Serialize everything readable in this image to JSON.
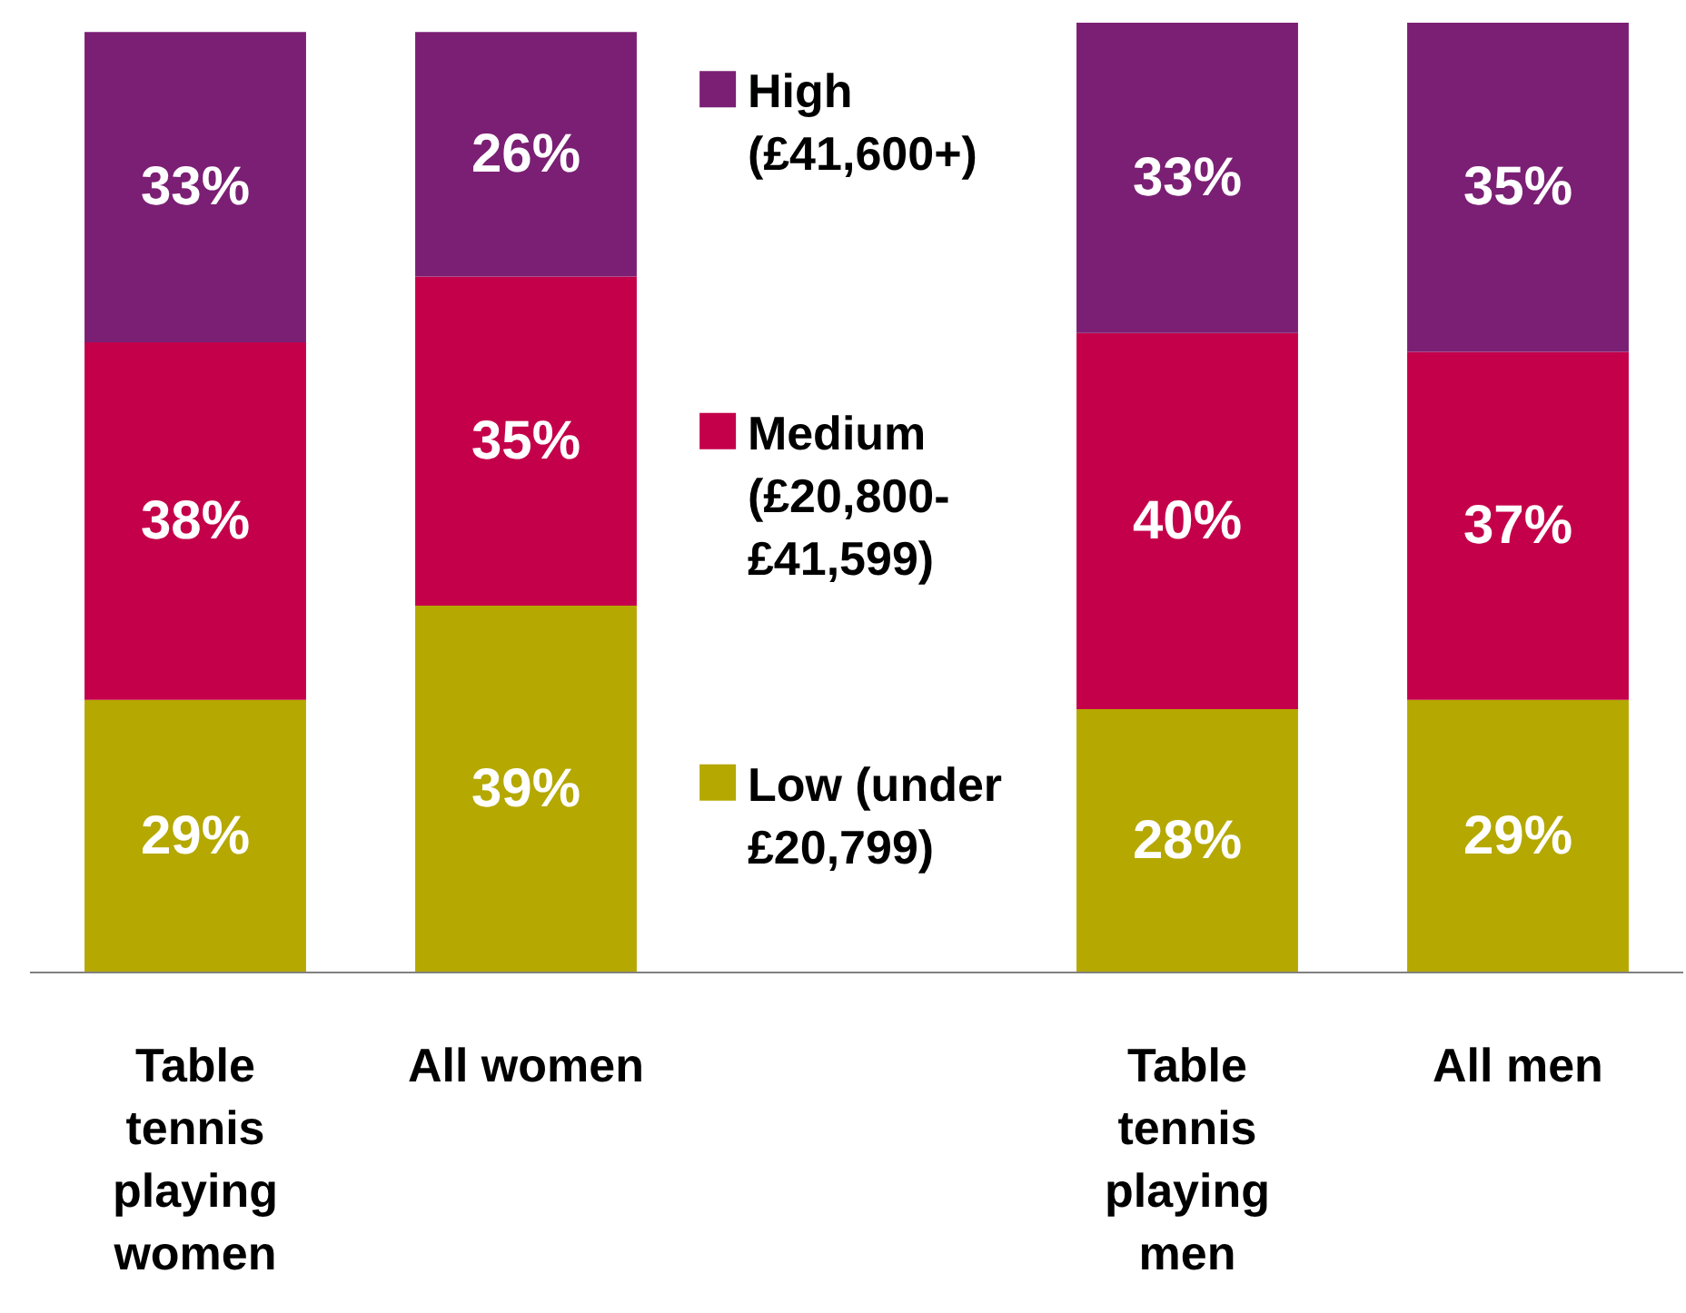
{
  "chart_data": {
    "type": "bar",
    "stacked": true,
    "legend": "top",
    "grid": false,
    "categories": [
      "Table tennis playing women",
      "All women",
      null,
      "Table tennis playing men",
      "All men"
    ],
    "series": [
      {
        "name": "Low (under £20,799)",
        "color": "#b5a800",
        "values": [
          29,
          39,
          null,
          28,
          29
        ],
        "value_labels": [
          "29%",
          "39%",
          null,
          "28%",
          "29%"
        ]
      },
      {
        "name": "Medium (£20,800-£41,599)",
        "color": "#c4004a",
        "values": [
          38,
          35,
          null,
          40,
          37
        ],
        "value_labels": [
          "38%",
          "35%",
          null,
          "40%",
          "37%"
        ]
      },
      {
        "name": "High (£41,600+)",
        "color": "#7b1f74",
        "values": [
          33,
          26,
          null,
          33,
          35
        ],
        "value_labels": [
          "33%",
          "26%",
          null,
          "33%",
          "35%"
        ]
      }
    ]
  }
}
